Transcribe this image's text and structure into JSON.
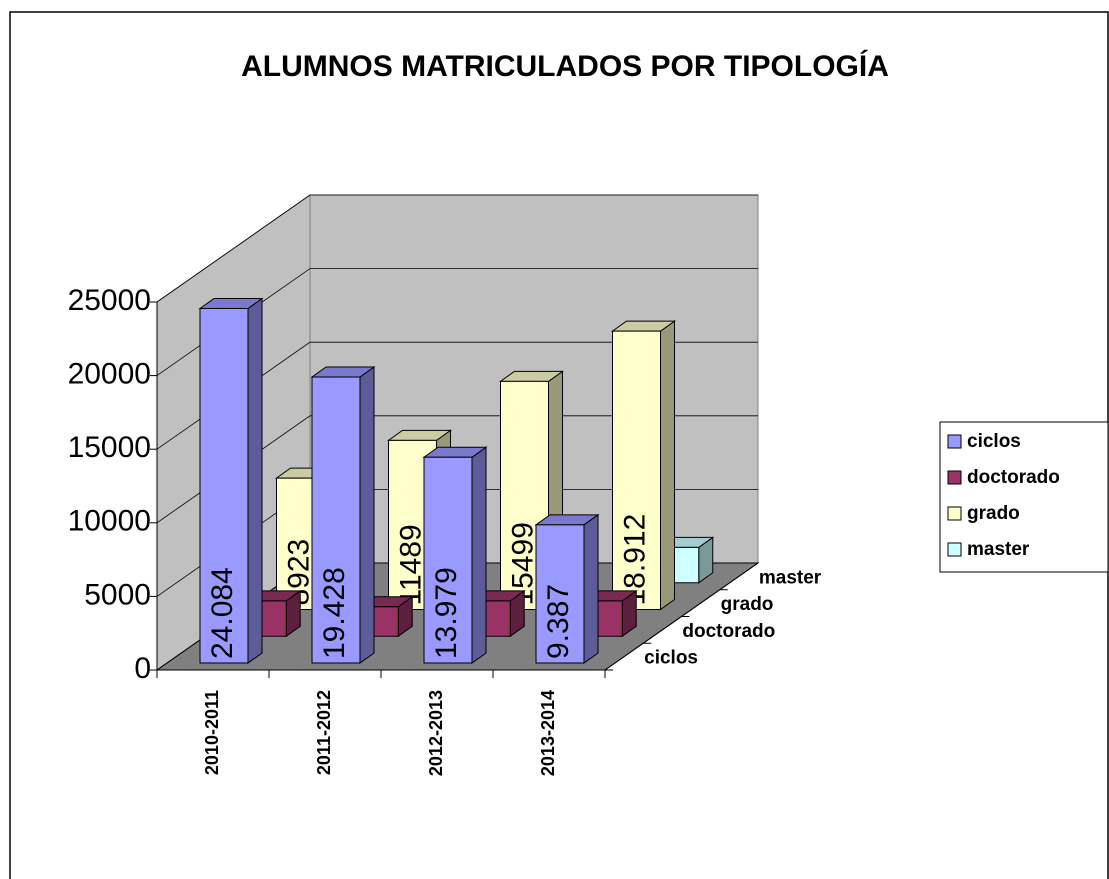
{
  "chart_data": {
    "type": "bar3d",
    "title": "ALUMNOS MATRICULADOS POR TIPOLOGÍA",
    "categories": [
      "2010-2011",
      "2011-2012",
      "2012-2013",
      "2013-2014"
    ],
    "series": [
      {
        "name": "ciclos",
        "color": "#9999ff",
        "values": [
          24084,
          19428,
          13979,
          9387
        ],
        "value_labels": [
          "24.084",
          "19.428",
          "13.979",
          "9.387"
        ]
      },
      {
        "name": "doctorado",
        "color": "#993366",
        "values": [
          2400,
          2000,
          2400,
          2400
        ]
      },
      {
        "name": "grado",
        "color": "#ffffcc",
        "values": [
          8923,
          11489,
          15499,
          18912
        ],
        "value_labels": [
          "8923",
          "11489",
          "15499",
          "18.912"
        ]
      },
      {
        "name": "master",
        "color": "#ccffff",
        "values": [
          null,
          null,
          null,
          2400
        ]
      }
    ],
    "ylim": [
      0,
      25000
    ],
    "yticks": [
      0,
      5000,
      10000,
      15000,
      20000,
      25000
    ],
    "grid": true,
    "legend": "right"
  }
}
